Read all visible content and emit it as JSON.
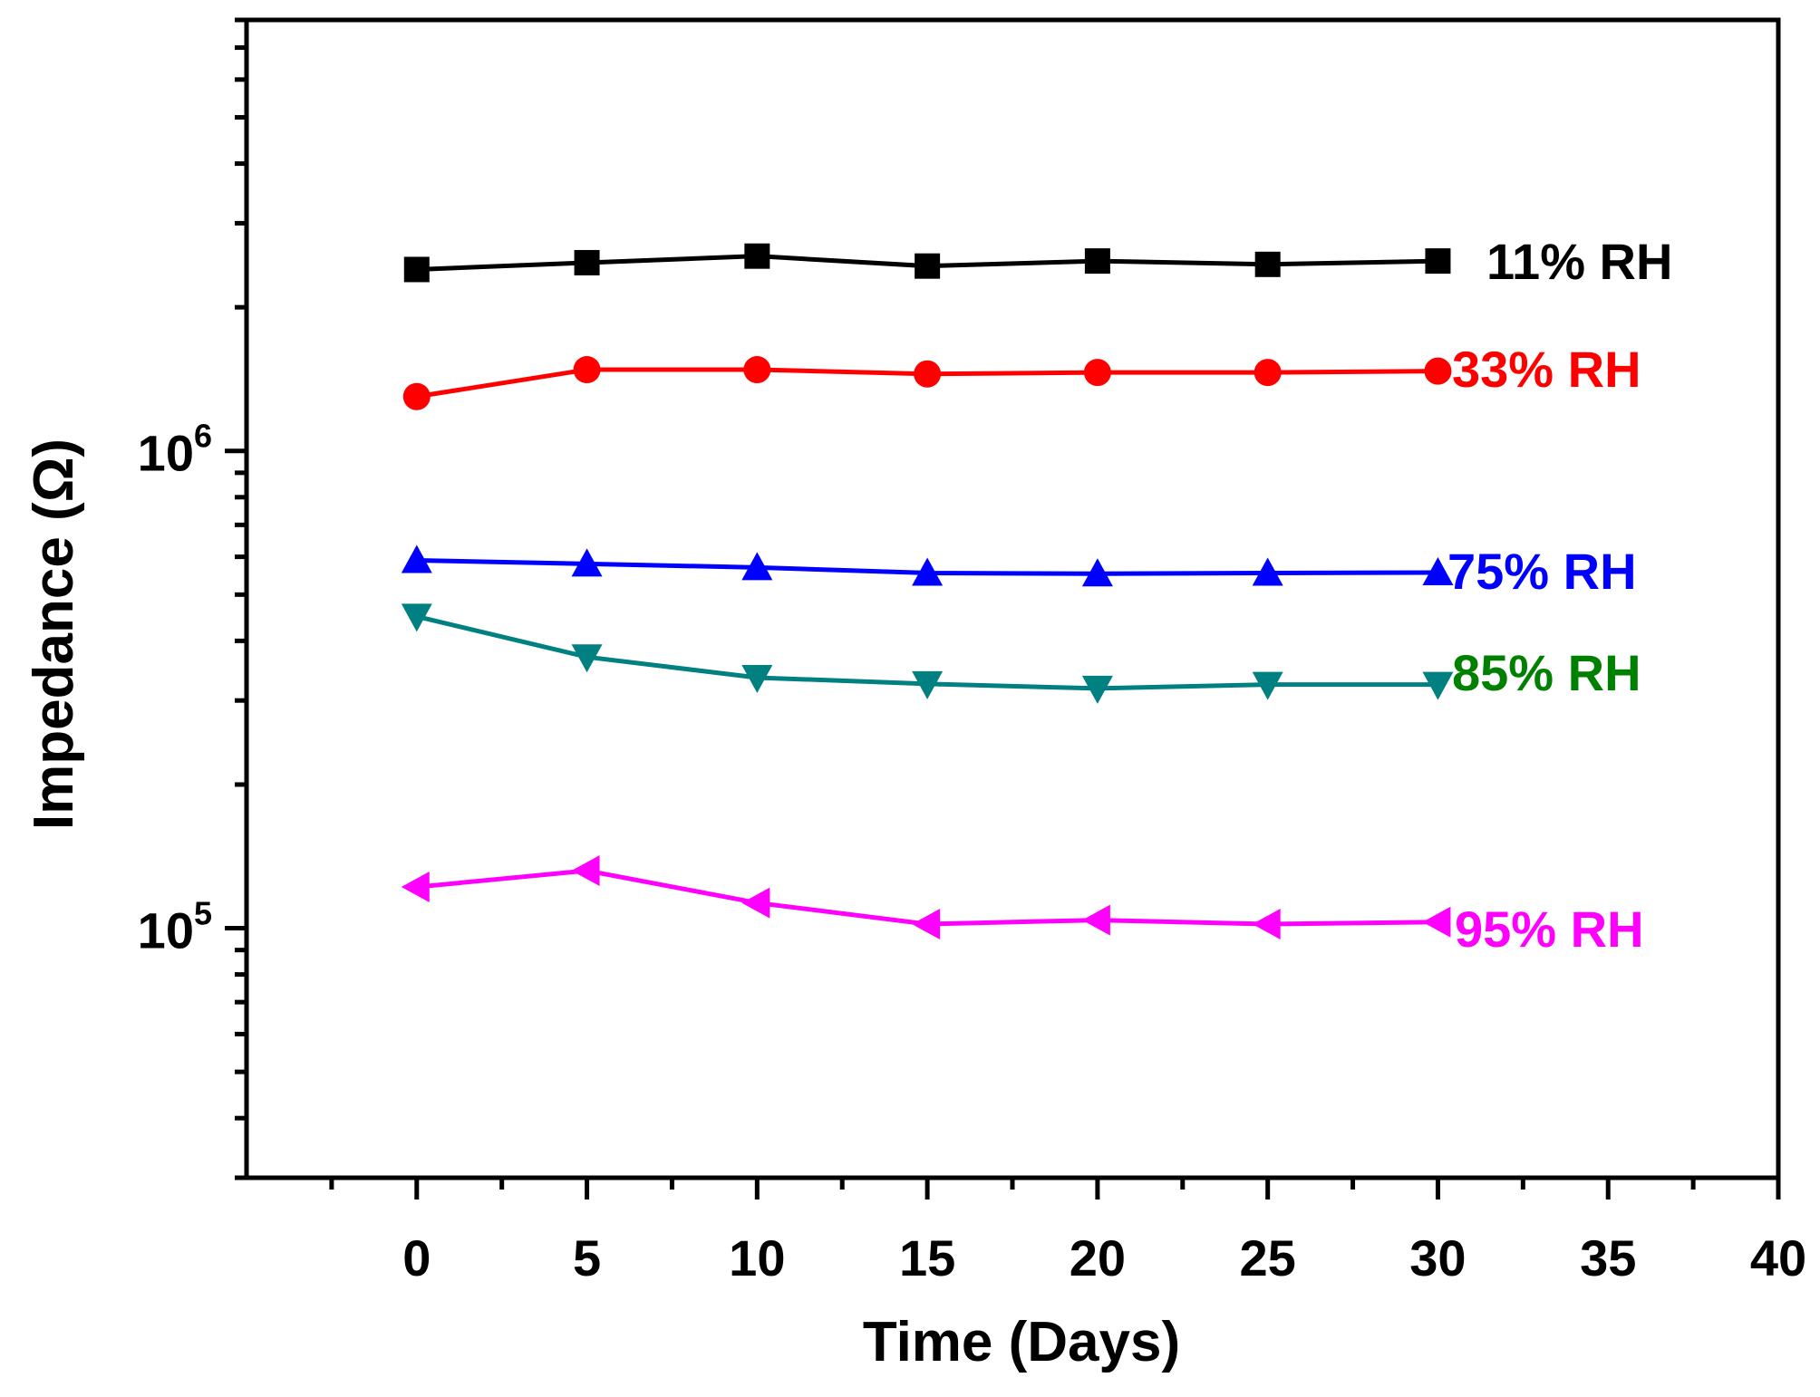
{
  "chart_data": {
    "type": "line",
    "title": "",
    "xlabel": "Time (Days)",
    "ylabel": "Impedance (Ω)",
    "x_scale": "linear",
    "y_scale": "log",
    "xlim": [
      -5,
      40
    ],
    "ylim": [
      30000,
      8000000
    ],
    "xticks": [
      0,
      5,
      10,
      15,
      20,
      25,
      30,
      35,
      40
    ],
    "xtick_labels": [
      "0",
      "5",
      "10",
      "15",
      "20",
      "25",
      "30",
      "35",
      "40"
    ],
    "yticks_major": [
      {
        "value": 100000,
        "base": "10",
        "exp": "5"
      },
      {
        "value": 1000000,
        "base": "10",
        "exp": "6"
      }
    ],
    "grid": false,
    "x": [
      0,
      5,
      10,
      15,
      20,
      25,
      30
    ],
    "series": [
      {
        "name": "11% RH",
        "label": "11% RH",
        "color": "#000000",
        "marker": "square",
        "values": [
          2400000,
          2480000,
          2560000,
          2440000,
          2500000,
          2460000,
          2500000
        ]
      },
      {
        "name": "33% RH",
        "label": "33% RH",
        "color": "#ff0000",
        "marker": "circle",
        "values": [
          1300000,
          1480000,
          1480000,
          1450000,
          1460000,
          1460000,
          1470000
        ]
      },
      {
        "name": "75% RH",
        "label": "75% RH",
        "color": "#0000ff",
        "marker": "triangle-up",
        "values": [
          590000,
          580000,
          570000,
          555000,
          553000,
          555000,
          556000
        ]
      },
      {
        "name": "85% RH",
        "label": "85% RH",
        "color": "#008080",
        "label_color": "#008000",
        "marker": "triangle-down",
        "values": [
          450000,
          370000,
          335000,
          325000,
          318000,
          324000,
          324000
        ]
      },
      {
        "name": "95% RH",
        "label": "95% RH",
        "color": "#ff00ff",
        "marker": "triangle-left",
        "values": [
          122000,
          132000,
          113000,
          102000,
          104000,
          102000,
          103000
        ]
      }
    ]
  }
}
